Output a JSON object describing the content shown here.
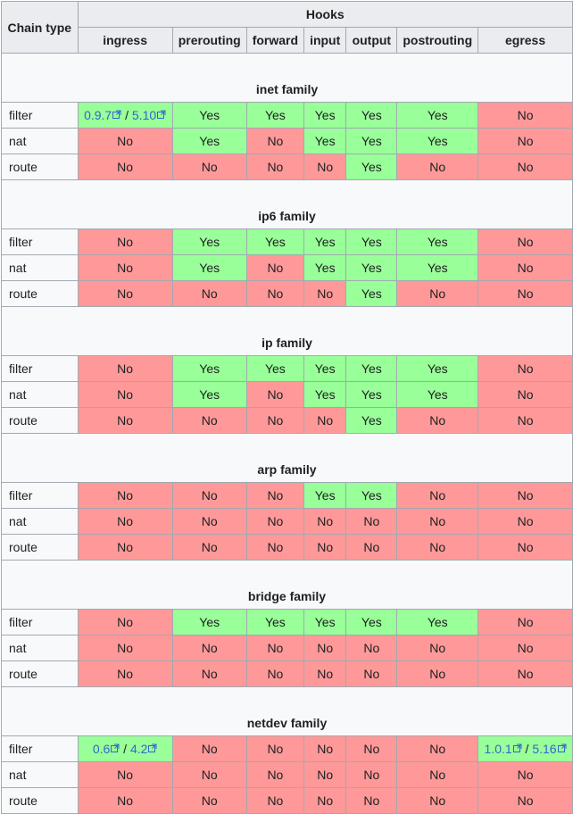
{
  "header": {
    "corner": "Chain type",
    "hooks": "Hooks",
    "columns": [
      "ingress",
      "prerouting",
      "forward",
      "input",
      "output",
      "postrouting",
      "egress"
    ]
  },
  "icons": {
    "external_link": "external-link-icon"
  },
  "colors": {
    "yes": "#99ff99",
    "no": "#ff9999",
    "header": "#eaecf0",
    "link": "#3366cc"
  },
  "families": [
    {
      "title": "inet family",
      "rows": [
        {
          "chain": "filter",
          "cells": [
            {
              "v": "0.9.7 / 5.10",
              "s": "yes",
              "links": [
                "0.9.7",
                "5.10"
              ]
            },
            {
              "v": "Yes",
              "s": "yes"
            },
            {
              "v": "Yes",
              "s": "yes"
            },
            {
              "v": "Yes",
              "s": "yes"
            },
            {
              "v": "Yes",
              "s": "yes"
            },
            {
              "v": "Yes",
              "s": "yes"
            },
            {
              "v": "No",
              "s": "no"
            }
          ]
        },
        {
          "chain": "nat",
          "cells": [
            {
              "v": "No",
              "s": "no"
            },
            {
              "v": "Yes",
              "s": "yes"
            },
            {
              "v": "No",
              "s": "no"
            },
            {
              "v": "Yes",
              "s": "yes"
            },
            {
              "v": "Yes",
              "s": "yes"
            },
            {
              "v": "Yes",
              "s": "yes"
            },
            {
              "v": "No",
              "s": "no"
            }
          ]
        },
        {
          "chain": "route",
          "cells": [
            {
              "v": "No",
              "s": "no"
            },
            {
              "v": "No",
              "s": "no"
            },
            {
              "v": "No",
              "s": "no"
            },
            {
              "v": "No",
              "s": "no"
            },
            {
              "v": "Yes",
              "s": "yes"
            },
            {
              "v": "No",
              "s": "no"
            },
            {
              "v": "No",
              "s": "no"
            }
          ]
        }
      ]
    },
    {
      "title": "ip6 family",
      "rows": [
        {
          "chain": "filter",
          "cells": [
            {
              "v": "No",
              "s": "no"
            },
            {
              "v": "Yes",
              "s": "yes"
            },
            {
              "v": "Yes",
              "s": "yes"
            },
            {
              "v": "Yes",
              "s": "yes"
            },
            {
              "v": "Yes",
              "s": "yes"
            },
            {
              "v": "Yes",
              "s": "yes"
            },
            {
              "v": "No",
              "s": "no"
            }
          ]
        },
        {
          "chain": "nat",
          "cells": [
            {
              "v": "No",
              "s": "no"
            },
            {
              "v": "Yes",
              "s": "yes"
            },
            {
              "v": "No",
              "s": "no"
            },
            {
              "v": "Yes",
              "s": "yes"
            },
            {
              "v": "Yes",
              "s": "yes"
            },
            {
              "v": "Yes",
              "s": "yes"
            },
            {
              "v": "No",
              "s": "no"
            }
          ]
        },
        {
          "chain": "route",
          "cells": [
            {
              "v": "No",
              "s": "no"
            },
            {
              "v": "No",
              "s": "no"
            },
            {
              "v": "No",
              "s": "no"
            },
            {
              "v": "No",
              "s": "no"
            },
            {
              "v": "Yes",
              "s": "yes"
            },
            {
              "v": "No",
              "s": "no"
            },
            {
              "v": "No",
              "s": "no"
            }
          ]
        }
      ]
    },
    {
      "title": "ip family",
      "rows": [
        {
          "chain": "filter",
          "cells": [
            {
              "v": "No",
              "s": "no"
            },
            {
              "v": "Yes",
              "s": "yes"
            },
            {
              "v": "Yes",
              "s": "yes"
            },
            {
              "v": "Yes",
              "s": "yes"
            },
            {
              "v": "Yes",
              "s": "yes"
            },
            {
              "v": "Yes",
              "s": "yes"
            },
            {
              "v": "No",
              "s": "no"
            }
          ]
        },
        {
          "chain": "nat",
          "cells": [
            {
              "v": "No",
              "s": "no"
            },
            {
              "v": "Yes",
              "s": "yes"
            },
            {
              "v": "No",
              "s": "no"
            },
            {
              "v": "Yes",
              "s": "yes"
            },
            {
              "v": "Yes",
              "s": "yes"
            },
            {
              "v": "Yes",
              "s": "yes"
            },
            {
              "v": "No",
              "s": "no"
            }
          ]
        },
        {
          "chain": "route",
          "cells": [
            {
              "v": "No",
              "s": "no"
            },
            {
              "v": "No",
              "s": "no"
            },
            {
              "v": "No",
              "s": "no"
            },
            {
              "v": "No",
              "s": "no"
            },
            {
              "v": "Yes",
              "s": "yes"
            },
            {
              "v": "No",
              "s": "no"
            },
            {
              "v": "No",
              "s": "no"
            }
          ]
        }
      ]
    },
    {
      "title": "arp family",
      "rows": [
        {
          "chain": "filter",
          "cells": [
            {
              "v": "No",
              "s": "no"
            },
            {
              "v": "No",
              "s": "no"
            },
            {
              "v": "No",
              "s": "no"
            },
            {
              "v": "Yes",
              "s": "yes"
            },
            {
              "v": "Yes",
              "s": "yes"
            },
            {
              "v": "No",
              "s": "no"
            },
            {
              "v": "No",
              "s": "no"
            }
          ]
        },
        {
          "chain": "nat",
          "cells": [
            {
              "v": "No",
              "s": "no"
            },
            {
              "v": "No",
              "s": "no"
            },
            {
              "v": "No",
              "s": "no"
            },
            {
              "v": "No",
              "s": "no"
            },
            {
              "v": "No",
              "s": "no"
            },
            {
              "v": "No",
              "s": "no"
            },
            {
              "v": "No",
              "s": "no"
            }
          ]
        },
        {
          "chain": "route",
          "cells": [
            {
              "v": "No",
              "s": "no"
            },
            {
              "v": "No",
              "s": "no"
            },
            {
              "v": "No",
              "s": "no"
            },
            {
              "v": "No",
              "s": "no"
            },
            {
              "v": "No",
              "s": "no"
            },
            {
              "v": "No",
              "s": "no"
            },
            {
              "v": "No",
              "s": "no"
            }
          ]
        }
      ]
    },
    {
      "title": "bridge family",
      "rows": [
        {
          "chain": "filter",
          "cells": [
            {
              "v": "No",
              "s": "no"
            },
            {
              "v": "Yes",
              "s": "yes"
            },
            {
              "v": "Yes",
              "s": "yes"
            },
            {
              "v": "Yes",
              "s": "yes"
            },
            {
              "v": "Yes",
              "s": "yes"
            },
            {
              "v": "Yes",
              "s": "yes"
            },
            {
              "v": "No",
              "s": "no"
            }
          ]
        },
        {
          "chain": "nat",
          "cells": [
            {
              "v": "No",
              "s": "no"
            },
            {
              "v": "No",
              "s": "no"
            },
            {
              "v": "No",
              "s": "no"
            },
            {
              "v": "No",
              "s": "no"
            },
            {
              "v": "No",
              "s": "no"
            },
            {
              "v": "No",
              "s": "no"
            },
            {
              "v": "No",
              "s": "no"
            }
          ]
        },
        {
          "chain": "route",
          "cells": [
            {
              "v": "No",
              "s": "no"
            },
            {
              "v": "No",
              "s": "no"
            },
            {
              "v": "No",
              "s": "no"
            },
            {
              "v": "No",
              "s": "no"
            },
            {
              "v": "No",
              "s": "no"
            },
            {
              "v": "No",
              "s": "no"
            },
            {
              "v": "No",
              "s": "no"
            }
          ]
        }
      ]
    },
    {
      "title": "netdev family",
      "rows": [
        {
          "chain": "filter",
          "cells": [
            {
              "v": "0.6 / 4.2",
              "s": "yes",
              "links": [
                "0.6",
                "4.2"
              ]
            },
            {
              "v": "No",
              "s": "no"
            },
            {
              "v": "No",
              "s": "no"
            },
            {
              "v": "No",
              "s": "no"
            },
            {
              "v": "No",
              "s": "no"
            },
            {
              "v": "No",
              "s": "no"
            },
            {
              "v": "1.0.1 / 5.16",
              "s": "yes",
              "links": [
                "1.0.1",
                "5.16"
              ]
            }
          ]
        },
        {
          "chain": "nat",
          "cells": [
            {
              "v": "No",
              "s": "no"
            },
            {
              "v": "No",
              "s": "no"
            },
            {
              "v": "No",
              "s": "no"
            },
            {
              "v": "No",
              "s": "no"
            },
            {
              "v": "No",
              "s": "no"
            },
            {
              "v": "No",
              "s": "no"
            },
            {
              "v": "No",
              "s": "no"
            }
          ]
        },
        {
          "chain": "route",
          "cells": [
            {
              "v": "No",
              "s": "no"
            },
            {
              "v": "No",
              "s": "no"
            },
            {
              "v": "No",
              "s": "no"
            },
            {
              "v": "No",
              "s": "no"
            },
            {
              "v": "No",
              "s": "no"
            },
            {
              "v": "No",
              "s": "no"
            },
            {
              "v": "No",
              "s": "no"
            }
          ]
        }
      ]
    }
  ]
}
